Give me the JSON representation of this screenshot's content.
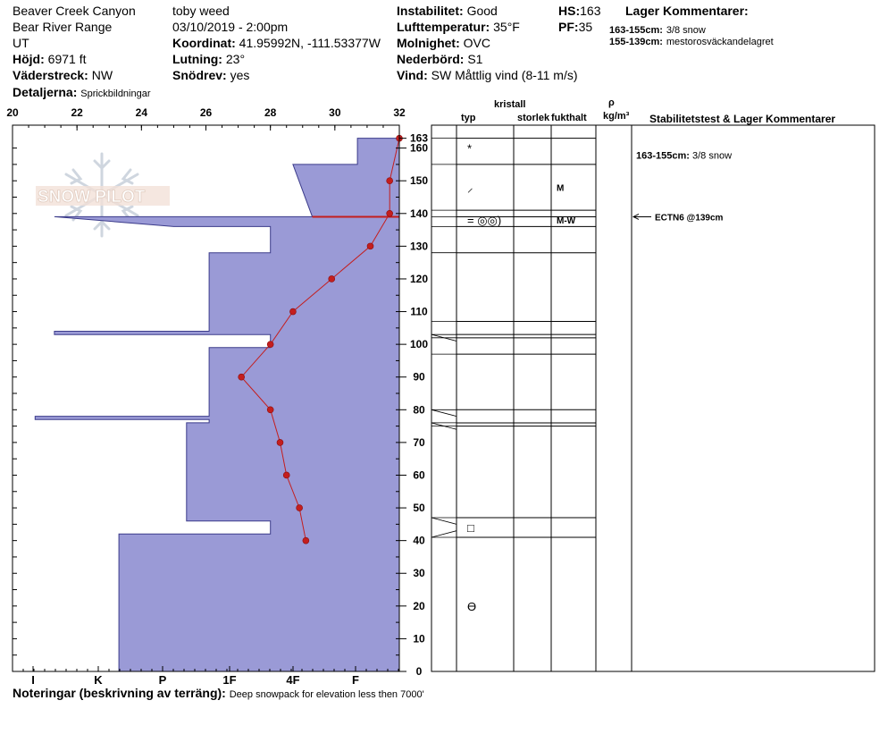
{
  "header": {
    "location": "Beaver Creek Canyon",
    "range": "Bear River Range",
    "state": "UT",
    "observer": "toby weed",
    "datetime": "03/10/2019 - 2:00pm",
    "elevation_label": "Höjd:",
    "elevation": "6971 ft",
    "aspect_label": "Väderstreck:",
    "aspect": "NW",
    "details_label": "Detaljerna:",
    "details": "Sprickbildningar",
    "coord_label": "Koordinat:",
    "coord": "41.95992N, -111.53377W",
    "slope_label": "Lutning:",
    "slope": "23°",
    "drift_label": "Snödrev:",
    "drift": "yes",
    "instability_label": "Instabilitet:",
    "instability": "Good",
    "airtemp_label": "Lufttemperatur:",
    "airtemp": "35°F",
    "sky_label": "Molnighet:",
    "sky": "OVC",
    "precip_label": "Nederbörd:",
    "precip": "S1",
    "wind_label": "Vind:",
    "wind": "SW  Måttlig vind (8-11 m/s)",
    "hs_label": "HS:",
    "hs": "163",
    "pf_label": "PF:",
    "pf": "35",
    "layer_comments_title": "Lager Kommentarer:",
    "layer_comments": [
      {
        "range": "163-155cm:",
        "text": "3/8 snow"
      },
      {
        "range": "155-139cm:",
        "text": "mestorosväckandelagret"
      }
    ]
  },
  "notes": {
    "label": "Noteringar (beskrivning av terräng):",
    "text": "Deep snowpack for elevation less then 7000'"
  },
  "watermark": "SNOW PILOT",
  "table": {
    "col_kristall": "kristall",
    "col_typ": "typ",
    "col_storlek": "storlek",
    "col_fukthalt": "fukthalt",
    "col_rho": "ρ",
    "col_rho_unit": "kg/m³",
    "col_stab": "Stabilitetstest & Lager Kommentarer",
    "stab_comment_range": "163-155cm:",
    "stab_comment_text": "3/8 snow",
    "test_result": "ECTN6 @139cm"
  },
  "chart_data": {
    "type": "snow-profile",
    "temp_axis": {
      "min": 20,
      "max": 32,
      "ticks": [
        20,
        22,
        24,
        26,
        28,
        30,
        32
      ]
    },
    "height_axis": {
      "min": 0,
      "max": 167,
      "ticks": [
        0,
        10,
        20,
        30,
        40,
        50,
        60,
        70,
        80,
        90,
        100,
        110,
        120,
        130,
        140,
        150,
        160,
        163
      ]
    },
    "hardness_ticks": [
      "I",
      "K",
      "P",
      "1F",
      "4F",
      "F"
    ],
    "hardness_profile": [
      [
        0,
        23.3
      ],
      [
        42,
        23.3
      ],
      [
        42,
        28.0
      ],
      [
        46,
        28.0
      ],
      [
        46,
        25.4
      ],
      [
        76,
        25.4
      ],
      [
        76,
        26.1
      ],
      [
        77,
        26.1
      ],
      [
        77,
        20.7
      ],
      [
        78,
        20.7
      ],
      [
        78,
        26.1
      ],
      [
        99,
        26.1
      ],
      [
        99,
        28.0
      ],
      [
        103,
        28.0
      ],
      [
        103,
        21.3
      ],
      [
        104,
        21.3
      ],
      [
        104,
        26.1
      ],
      [
        128,
        26.1
      ],
      [
        128,
        28.0
      ],
      [
        136,
        28.0
      ],
      [
        136,
        25.0
      ],
      [
        139,
        21.3
      ],
      [
        139,
        29.3
      ],
      [
        155,
        28.7
      ],
      [
        155,
        30.7
      ],
      [
        163,
        30.7
      ],
      [
        163,
        32.0
      ],
      [
        0,
        32.0
      ]
    ],
    "temp_profile": [
      {
        "h": 163,
        "t": 32.0
      },
      {
        "h": 150,
        "t": 31.7
      },
      {
        "h": 140,
        "t": 31.7
      },
      {
        "h": 130,
        "t": 31.1
      },
      {
        "h": 120,
        "t": 29.9
      },
      {
        "h": 110,
        "t": 28.7
      },
      {
        "h": 100,
        "t": 28.0
      },
      {
        "h": 90,
        "t": 27.1
      },
      {
        "h": 80,
        "t": 28.0
      },
      {
        "h": 70,
        "t": 28.3
      },
      {
        "h": 60,
        "t": 28.5
      },
      {
        "h": 50,
        "t": 28.9
      },
      {
        "h": 40,
        "t": 29.1
      }
    ],
    "layer_boundaries": [
      163,
      155,
      141,
      139,
      136,
      128,
      107,
      103,
      102,
      97,
      80,
      76,
      75,
      47,
      41
    ],
    "crystal_symbols": [
      {
        "h": 160,
        "symbol": "*"
      },
      {
        "h": 148,
        "symbol": "⸝"
      },
      {
        "h": 138,
        "symbol": "= ◎◎)"
      },
      {
        "h": 44,
        "symbol": "□"
      },
      {
        "h": 20,
        "symbol": "ϴ"
      }
    ],
    "moisture_labels": [
      {
        "h": 148,
        "text": "M"
      },
      {
        "h": 138,
        "text": "M-W"
      }
    ],
    "test_marker_h": 139
  },
  "colors": {
    "fill": "#9a9ad6",
    "temp": "#c41e1e",
    "frame": "#000000"
  }
}
